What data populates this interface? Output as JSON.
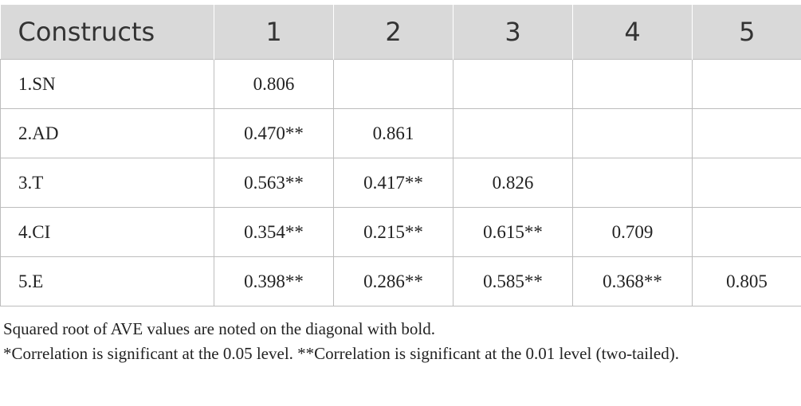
{
  "table": {
    "header": [
      "Constructs",
      "1",
      "2",
      "3",
      "4",
      "5"
    ],
    "rows": [
      [
        "1.SN",
        "0.806",
        null,
        null,
        null,
        null
      ],
      [
        "2.AD",
        "0.470**",
        "0.861",
        null,
        null,
        null
      ],
      [
        "3.T",
        "0.563**",
        "0.417**",
        "0.826",
        null,
        null
      ],
      [
        "4.CI",
        "0.354**",
        "0.215**",
        "0.615**",
        "0.709",
        null
      ],
      [
        "5.E",
        "0.398**",
        "0.286**",
        "0.585**",
        "0.368**",
        "0.805"
      ]
    ]
  },
  "notes": [
    "Squared root of AVE values are noted on the diagonal with bold.",
    "*Correlation is significant at the 0.05 level. **Correlation is significant at the 0.01 level (two-tailed)."
  ]
}
